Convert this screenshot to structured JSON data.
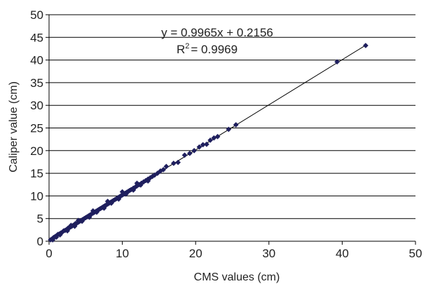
{
  "chart_data": {
    "type": "scatter",
    "xlabel": "CMS values (cm)",
    "ylabel": "Caliper value (cm)",
    "xlim": [
      0,
      50
    ],
    "ylim": [
      0,
      50
    ],
    "x_ticks": [
      "0",
      "10",
      "20",
      "30",
      "40",
      "50"
    ],
    "y_ticks": [
      "0",
      "5",
      "10",
      "15",
      "20",
      "25",
      "30",
      "35",
      "40",
      "45",
      "50"
    ],
    "grid": "horizontal",
    "legend": "none",
    "marker": "diamond",
    "marker_color": "#1f1f5e",
    "series": [
      {
        "points": [
          [
            0.2,
            0.3
          ],
          [
            0.4,
            0.5
          ],
          [
            0.6,
            0.8
          ],
          [
            0.8,
            1.0
          ],
          [
            1.0,
            1.2
          ],
          [
            1.2,
            1.5
          ],
          [
            1.4,
            1.6
          ],
          [
            1.6,
            1.8
          ],
          [
            1.8,
            2.0
          ],
          [
            2.0,
            2.3
          ],
          [
            2.2,
            2.4
          ],
          [
            2.4,
            2.6
          ],
          [
            2.6,
            2.9
          ],
          [
            2.8,
            3.0
          ],
          [
            3.0,
            3.2
          ],
          [
            3.2,
            3.4
          ],
          [
            3.4,
            3.6
          ],
          [
            3.6,
            3.9
          ],
          [
            3.8,
            4.0
          ],
          [
            4.0,
            4.2
          ],
          [
            4.2,
            4.4
          ],
          [
            4.4,
            4.6
          ],
          [
            4.6,
            4.8
          ],
          [
            4.8,
            5.0
          ],
          [
            5.0,
            5.2
          ],
          [
            5.2,
            5.4
          ],
          [
            5.4,
            5.6
          ],
          [
            5.6,
            5.8
          ],
          [
            5.8,
            6.0
          ],
          [
            6.0,
            6.2
          ],
          [
            6.2,
            6.4
          ],
          [
            6.4,
            6.6
          ],
          [
            6.6,
            6.8
          ],
          [
            6.8,
            7.0
          ],
          [
            7.0,
            7.2
          ],
          [
            7.2,
            7.4
          ],
          [
            7.4,
            7.6
          ],
          [
            7.6,
            7.8
          ],
          [
            7.8,
            8.0
          ],
          [
            8.0,
            8.2
          ],
          [
            8.2,
            8.4
          ],
          [
            8.4,
            8.6
          ],
          [
            8.6,
            8.8
          ],
          [
            8.8,
            9.0
          ],
          [
            9.0,
            9.2
          ],
          [
            9.2,
            9.4
          ],
          [
            9.4,
            9.6
          ],
          [
            9.6,
            9.8
          ],
          [
            9.8,
            10.0
          ],
          [
            10.0,
            10.2
          ],
          [
            10.2,
            10.4
          ],
          [
            10.4,
            10.6
          ],
          [
            10.6,
            10.8
          ],
          [
            10.8,
            11.0
          ],
          [
            11.0,
            11.2
          ],
          [
            11.2,
            11.4
          ],
          [
            11.5,
            11.7
          ],
          [
            11.8,
            12.0
          ],
          [
            12.0,
            12.2
          ],
          [
            12.3,
            12.5
          ],
          [
            12.6,
            12.8
          ],
          [
            12.9,
            13.1
          ],
          [
            13.2,
            13.4
          ],
          [
            13.5,
            13.7
          ],
          [
            13.8,
            14.0
          ],
          [
            14.1,
            14.3
          ],
          [
            14.4,
            14.6
          ],
          [
            14.8,
            15.0
          ],
          [
            15.2,
            15.5
          ],
          [
            15.6,
            15.8
          ],
          [
            16.0,
            16.5
          ],
          [
            17.0,
            17.2
          ],
          [
            17.6,
            17.4
          ],
          [
            18.5,
            19.0
          ],
          [
            19.2,
            19.4
          ],
          [
            19.8,
            20.0
          ],
          [
            20.5,
            20.8
          ],
          [
            21.0,
            21.3
          ],
          [
            21.5,
            21.4
          ],
          [
            22.0,
            22.3
          ],
          [
            22.5,
            22.8
          ],
          [
            23.0,
            23.1
          ],
          [
            24.5,
            24.7
          ],
          [
            25.5,
            25.7
          ],
          [
            39.3,
            39.6
          ],
          [
            43.2,
            43.2
          ],
          [
            0.5,
            0.3
          ],
          [
            1.0,
            0.9
          ],
          [
            1.5,
            1.4
          ],
          [
            2.5,
            2.3
          ],
          [
            3.5,
            3.3
          ],
          [
            4.5,
            4.4
          ],
          [
            5.5,
            5.3
          ],
          [
            6.5,
            6.4
          ],
          [
            7.5,
            7.3
          ],
          [
            8.5,
            8.4
          ],
          [
            9.5,
            9.3
          ],
          [
            10.5,
            10.4
          ],
          [
            11.5,
            11.3
          ],
          [
            12.5,
            12.4
          ],
          [
            13.5,
            13.3
          ],
          [
            3.0,
            3.5
          ],
          [
            4.0,
            4.6
          ],
          [
            6.0,
            6.7
          ],
          [
            8.0,
            8.8
          ],
          [
            10.0,
            10.9
          ],
          [
            12.0,
            12.8
          ]
        ]
      }
    ],
    "trendline": {
      "from_x": 0,
      "to_x": 43.2,
      "equation": "y = 0.9965x + 0.2156",
      "r2_prefix": "R",
      "r2_exponent": "2",
      "r2_value": "= 0.9969"
    }
  }
}
